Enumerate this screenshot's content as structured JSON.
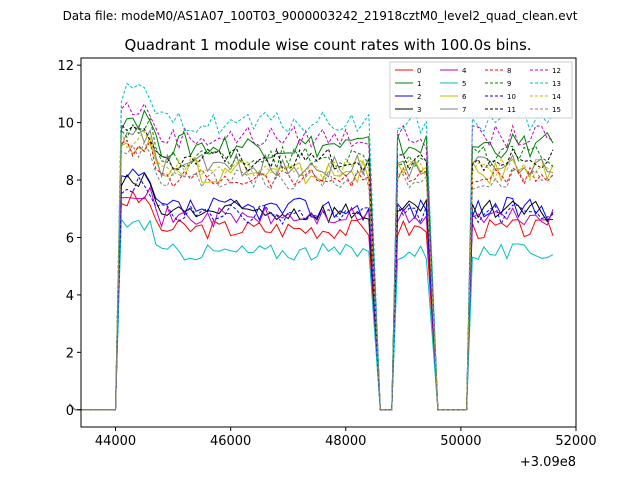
{
  "figure": {
    "suptitle": "Data file: modeM0/AS1A07_100T03_9000003242_21918cztM0_level2_quad_clean.evt"
  },
  "chart_data": {
    "type": "line",
    "title": "Quadrant 1 module wise count rates with 100.0s bins.",
    "xlabel": "",
    "ylabel": "",
    "x_offset_label": "+3.09e8",
    "xlim": [
      43400,
      52000
    ],
    "ylim": [
      -0.6,
      12.25
    ],
    "x_ticks": [
      44000,
      46000,
      48000,
      50000,
      52000
    ],
    "x_tick_labels": [
      "44000",
      "46000",
      "48000",
      "50000",
      "52000"
    ],
    "y_ticks": [
      0,
      2,
      4,
      6,
      8,
      10,
      12
    ],
    "y_tick_labels": [
      "0",
      "2",
      "4",
      "6",
      "8",
      "10",
      "12"
    ],
    "grid": false,
    "legend_position": "top-right",
    "gaps": [
      [
        44000,
        48600
      ],
      [
        48900,
        49600
      ],
      [
        49900,
        50300
      ],
      [
        50300,
        51600
      ]
    ],
    "series": [
      {
        "name": "0",
        "color": "#ff0000",
        "style": "solid",
        "level": 6.3,
        "noise": 0.35
      },
      {
        "name": "1",
        "color": "#008000",
        "style": "solid",
        "level": 9.2,
        "noise": 0.45
      },
      {
        "name": "2",
        "color": "#0000ff",
        "style": "solid",
        "level": 7.0,
        "noise": 0.4
      },
      {
        "name": "3",
        "color": "#000000",
        "style": "solid",
        "level": 6.9,
        "noise": 0.4
      },
      {
        "name": "4",
        "color": "#bf00bf",
        "style": "solid",
        "level": 6.7,
        "noise": 0.35
      },
      {
        "name": "5",
        "color": "#00bfbf",
        "style": "solid",
        "level": 5.5,
        "noise": 0.3
      },
      {
        "name": "6",
        "color": "#bfbf00",
        "style": "solid",
        "level": 8.3,
        "noise": 0.45
      },
      {
        "name": "7",
        "color": "#808080",
        "style": "solid",
        "level": 8.5,
        "noise": 0.4
      },
      {
        "name": "8",
        "color": "#ff0000",
        "style": "dashed",
        "level": 8.1,
        "noise": 0.35
      },
      {
        "name": "9",
        "color": "#008000",
        "style": "dashed",
        "level": 8.8,
        "noise": 0.4
      },
      {
        "name": "10",
        "color": "#0000ff",
        "style": "dashed",
        "level": 6.8,
        "noise": 0.35
      },
      {
        "name": "11",
        "color": "#000000",
        "style": "dashed",
        "level": 8.7,
        "noise": 0.4
      },
      {
        "name": "12",
        "color": "#bf00bf",
        "style": "dashed",
        "level": 9.5,
        "noise": 0.4
      },
      {
        "name": "13",
        "color": "#00bfbf",
        "style": "dashed",
        "level": 10.0,
        "noise": 0.4
      },
      {
        "name": "14",
        "color": "#bfbf00",
        "style": "dashed",
        "level": 8.4,
        "noise": 0.4
      },
      {
        "name": "15",
        "color": "#808080",
        "style": "dashed",
        "level": 8.0,
        "noise": 0.35
      }
    ]
  }
}
